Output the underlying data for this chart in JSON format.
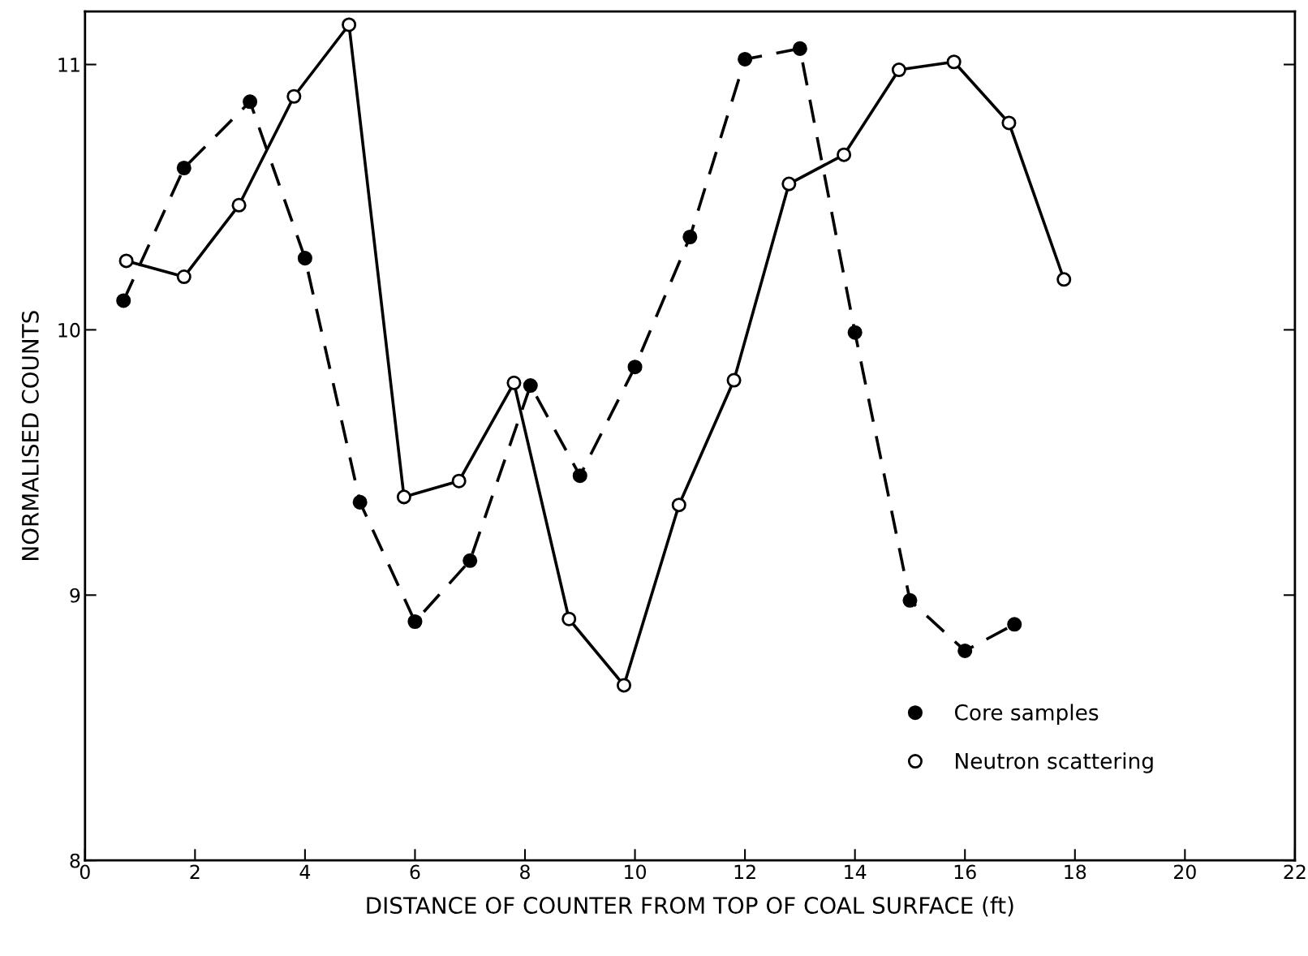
{
  "chart_data": {
    "type": "line",
    "xlabel": "DISTANCE OF COUNTER FROM TOP OF COAL SURFACE (ft)",
    "ylabel": "NORMALISED COUNTS",
    "xlim": [
      0,
      22
    ],
    "xticks": [
      0,
      2,
      4,
      6,
      8,
      10,
      12,
      14,
      16,
      18,
      20,
      22
    ],
    "ylim": [
      8,
      11.2
    ],
    "yticks": [
      8,
      9,
      10,
      11
    ],
    "grid": false,
    "legend": "bottom right",
    "series": [
      {
        "name": "Core samples",
        "color": "#000000",
        "marker": "circle",
        "line_style": "dashed",
        "x": [
          0.7,
          1.8,
          3.0,
          4.0,
          5.0,
          6.0,
          7.0,
          8.1,
          9.0,
          10.0,
          11.0,
          12.0,
          13.0,
          14.0,
          15.0,
          16.0,
          16.9
        ],
        "values": [
          10.11,
          10.61,
          10.86,
          10.27,
          9.35,
          8.9,
          9.13,
          9.79,
          9.45,
          9.86,
          10.35,
          11.02,
          11.06,
          9.99,
          8.98,
          8.79,
          8.89
        ]
      },
      {
        "name": "Neutron scattering",
        "color": "#000000",
        "marker": "circle",
        "line_style": "solid",
        "x": [
          0.75,
          1.8,
          2.8,
          3.8,
          4.8,
          5.8,
          6.8,
          7.8,
          8.8,
          9.8,
          10.8,
          11.8,
          12.8,
          13.8,
          14.8,
          15.8,
          16.8,
          17.8
        ],
        "values": [
          10.26,
          10.2,
          10.47,
          10.88,
          11.15,
          9.37,
          9.43,
          9.8,
          8.91,
          8.66,
          9.34,
          9.81,
          10.55,
          10.66,
          10.98,
          11.01,
          10.78,
          10.19
        ]
      }
    ]
  }
}
